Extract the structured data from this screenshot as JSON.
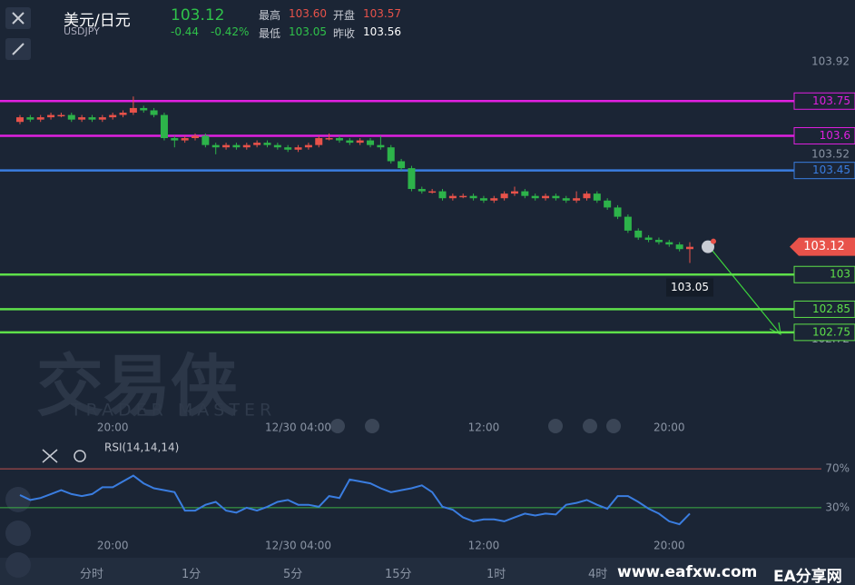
{
  "header": {
    "name": "美元/日元",
    "symbol": "USDJPY",
    "price": "103.12",
    "change": "-0.44",
    "change_pct": "-0.42%",
    "stats": [
      [
        "最高",
        "103.60"
      ],
      [
        "开盘",
        "103.57"
      ],
      [
        "最低",
        "103.05"
      ],
      [
        "昨收",
        "103.56"
      ]
    ]
  },
  "watermark": {
    "logo": "交易侠",
    "tagline": "TRADER MASTER",
    "site": "www.eafxw.com",
    "site_name": "EA分享网"
  },
  "toolbar": [
    "分时",
    "1分",
    "5分",
    "15分",
    "1时",
    "4时"
  ],
  "chart_data": [
    {
      "type": "candlestick",
      "up_color": "#e8524a",
      "down_color": "#2db34a",
      "categories": [
        null,
        null,
        null,
        null,
        null,
        null,
        null,
        null,
        null,
        "20:00",
        null,
        null,
        null,
        null,
        null,
        null,
        null,
        null,
        null,
        null,
        null,
        null,
        null,
        null,
        null,
        null,
        null,
        "12/30 04:00",
        null,
        null,
        null,
        null,
        null,
        null,
        null,
        null,
        null,
        null,
        null,
        null,
        null,
        null,
        null,
        null,
        null,
        "12:00",
        null,
        null,
        null,
        null,
        null,
        null,
        null,
        null,
        null,
        null,
        null,
        null,
        null,
        null,
        null,
        null,
        null,
        "20:00",
        null,
        null
      ],
      "open": [
        103.66,
        103.68,
        103.67,
        103.68,
        103.69,
        103.69,
        103.67,
        103.68,
        103.67,
        103.68,
        103.69,
        103.7,
        103.72,
        103.71,
        103.69,
        103.59,
        103.58,
        103.59,
        103.6,
        103.56,
        103.55,
        103.56,
        103.55,
        103.56,
        103.57,
        103.56,
        103.55,
        103.54,
        103.55,
        103.56,
        103.59,
        103.59,
        103.58,
        103.57,
        103.58,
        103.56,
        103.55,
        103.49,
        103.46,
        103.37,
        103.36,
        103.36,
        103.33,
        103.34,
        103.34,
        103.33,
        103.32,
        103.33,
        103.35,
        103.36,
        103.34,
        103.33,
        103.34,
        103.33,
        103.32,
        103.33,
        103.35,
        103.32,
        103.29,
        103.25,
        103.19,
        103.16,
        103.15,
        103.14,
        103.13,
        103.11
      ],
      "high": [
        103.69,
        103.69,
        103.69,
        103.7,
        103.7,
        103.7,
        103.69,
        103.69,
        103.69,
        103.7,
        103.71,
        103.77,
        103.73,
        103.72,
        103.7,
        103.6,
        103.6,
        103.61,
        103.61,
        103.57,
        103.57,
        103.57,
        103.57,
        103.58,
        103.58,
        103.57,
        103.56,
        103.56,
        103.57,
        103.6,
        103.61,
        103.6,
        103.59,
        103.59,
        103.59,
        103.6,
        103.56,
        103.5,
        103.47,
        103.38,
        103.37,
        103.37,
        103.35,
        103.35,
        103.35,
        103.34,
        103.34,
        103.36,
        103.38,
        103.37,
        103.35,
        103.35,
        103.35,
        103.34,
        103.36,
        103.36,
        103.36,
        103.33,
        103.3,
        103.26,
        103.2,
        103.17,
        103.16,
        103.15,
        103.14,
        103.14
      ],
      "low": [
        103.65,
        103.66,
        103.66,
        103.67,
        103.68,
        103.66,
        103.66,
        103.66,
        103.66,
        103.67,
        103.68,
        103.69,
        103.7,
        103.68,
        103.58,
        103.55,
        103.57,
        103.58,
        103.55,
        103.52,
        103.54,
        103.54,
        103.54,
        103.55,
        103.55,
        103.54,
        103.53,
        103.53,
        103.54,
        103.55,
        103.58,
        103.57,
        103.56,
        103.56,
        103.55,
        103.54,
        103.48,
        103.45,
        103.36,
        103.35,
        103.35,
        103.32,
        103.32,
        103.33,
        103.32,
        103.31,
        103.31,
        103.32,
        103.34,
        103.33,
        103.32,
        103.32,
        103.32,
        103.31,
        103.31,
        103.32,
        103.31,
        103.28,
        103.24,
        103.18,
        103.15,
        103.14,
        103.13,
        103.12,
        103.1,
        103.05
      ],
      "close": [
        103.68,
        103.67,
        103.68,
        103.69,
        103.69,
        103.67,
        103.68,
        103.67,
        103.68,
        103.69,
        103.7,
        103.72,
        103.71,
        103.69,
        103.59,
        103.58,
        103.59,
        103.6,
        103.56,
        103.55,
        103.56,
        103.55,
        103.56,
        103.57,
        103.56,
        103.55,
        103.54,
        103.55,
        103.56,
        103.59,
        103.59,
        103.58,
        103.57,
        103.58,
        103.56,
        103.55,
        103.49,
        103.46,
        103.37,
        103.36,
        103.36,
        103.33,
        103.34,
        103.34,
        103.33,
        103.32,
        103.33,
        103.35,
        103.36,
        103.34,
        103.33,
        103.34,
        103.33,
        103.32,
        103.33,
        103.35,
        103.32,
        103.29,
        103.25,
        103.19,
        103.16,
        103.15,
        103.14,
        103.13,
        103.11,
        103.12
      ],
      "ylim": [
        102.4,
        104.03
      ],
      "yticks": [
        103.92,
        103.52,
        102.72
      ],
      "grid": false,
      "hlines": [
        {
          "value": 103.75,
          "color": "#e020e0"
        },
        {
          "value": 103.6,
          "color": "#e020e0"
        },
        {
          "value": 103.45,
          "color": "#3a7de0"
        },
        {
          "value": 103,
          "color": "#5ee04a"
        },
        {
          "value": 102.85,
          "color": "#5ee04a"
        },
        {
          "value": 102.75,
          "color": "#5ee04a"
        }
      ]
    },
    {
      "type": "line",
      "title": "RSI(14,14,14)",
      "color": "#3a7de0",
      "values": [
        43,
        38,
        40,
        44,
        48,
        44,
        42,
        44,
        51,
        51,
        57,
        63,
        55,
        50,
        48,
        46,
        27,
        27,
        33,
        36,
        27,
        25,
        30,
        27,
        31,
        36,
        38,
        33,
        33,
        31,
        42,
        40,
        59,
        57,
        55,
        50,
        46,
        48,
        50,
        53,
        46,
        31,
        28,
        20,
        16,
        18,
        18,
        16,
        20,
        24,
        22,
        24,
        23,
        33,
        35,
        38,
        33,
        29,
        42,
        42,
        36,
        29,
        24,
        16,
        13,
        24
      ],
      "ylim": [
        1,
        85
      ],
      "yticks": [
        {
          "value": 70,
          "label": "70%"
        },
        {
          "value": 30,
          "label": "30%"
        }
      ],
      "ytick_colors": [
        "#c0504d",
        "#3cb043"
      ]
    }
  ]
}
